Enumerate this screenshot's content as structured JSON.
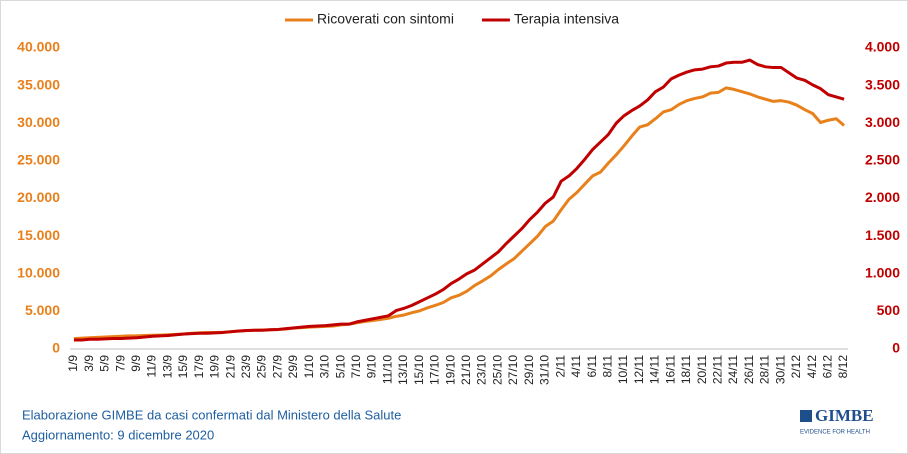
{
  "chart_data": {
    "type": "line",
    "categories": [
      "1/9",
      null,
      "3/9",
      null,
      "5/9",
      null,
      "7/9",
      null,
      "9/9",
      null,
      "11/9",
      null,
      "13/9",
      null,
      "15/9",
      null,
      "17/9",
      null,
      "19/9",
      null,
      "21/9",
      null,
      "23/9",
      null,
      "25/9",
      null,
      "27/9",
      null,
      "29/9",
      null,
      "1/10",
      null,
      "3/10",
      null,
      "5/10",
      null,
      "7/10",
      null,
      "9/10",
      null,
      "11/10",
      null,
      "13/10",
      null,
      "15/10",
      null,
      "17/10",
      null,
      "19/10",
      null,
      "21/10",
      null,
      "23/10",
      null,
      "25/10",
      null,
      "27/10",
      null,
      "29/10",
      null,
      "31/10",
      null,
      "2/11",
      null,
      "4/11",
      null,
      "6/11",
      null,
      "8/11",
      null,
      "10/11",
      null,
      "12/11",
      null,
      "14/11",
      null,
      "16/11",
      null,
      "18/11",
      null,
      "20/11",
      null,
      "22/11",
      null,
      "24/11",
      null,
      "26/11",
      null,
      "28/11",
      null,
      "30/11",
      null,
      "2/12",
      null,
      "4/12",
      null,
      "6/12",
      null,
      "8/12"
    ],
    "series": [
      {
        "name": "Ricoverati con sintomi",
        "color": "#e8801c",
        "axis": "y",
        "values": [
          1380,
          1450,
          1500,
          1550,
          1600,
          1650,
          1700,
          1750,
          1760,
          1800,
          1830,
          1850,
          1890,
          1950,
          2000,
          2100,
          2150,
          2200,
          2200,
          2220,
          2290,
          2380,
          2450,
          2500,
          2530,
          2560,
          2600,
          2660,
          2770,
          2840,
          2900,
          2960,
          3000,
          3050,
          3200,
          3300,
          3490,
          3650,
          3780,
          3920,
          4080,
          4340,
          4520,
          4820,
          5080,
          5470,
          5800,
          6180,
          6800,
          7130,
          7680,
          8450,
          9050,
          9690,
          10550,
          11300,
          12000,
          13000,
          14000,
          15000,
          16300,
          17000,
          18500,
          19900,
          20800,
          21900,
          23000,
          23500,
          24700,
          25800,
          27000,
          28300,
          29500,
          29800,
          30600,
          31500,
          31800,
          32500,
          33000,
          33300,
          33500,
          34000,
          34100,
          34700,
          34500,
          34200,
          33900,
          33500,
          33200,
          32900,
          33000,
          32800,
          32400,
          31800,
          31300,
          30100,
          30400,
          30600,
          29700
        ]
      },
      {
        "name": "Terapia intensiva",
        "color": "#c00000",
        "axis": "y2",
        "values": [
          120,
          120,
          130,
          130,
          135,
          140,
          140,
          145,
          150,
          160,
          170,
          175,
          180,
          190,
          200,
          205,
          210,
          210,
          215,
          220,
          230,
          240,
          245,
          250,
          250,
          255,
          260,
          270,
          280,
          290,
          300,
          305,
          310,
          320,
          330,
          330,
          360,
          380,
          400,
          420,
          440,
          510,
          540,
          580,
          630,
          680,
          730,
          790,
          870,
          930,
          1000,
          1050,
          1130,
          1210,
          1290,
          1400,
          1500,
          1600,
          1720,
          1820,
          1940,
          2020,
          2230,
          2300,
          2400,
          2520,
          2650,
          2750,
          2850,
          3000,
          3100,
          3170,
          3230,
          3310,
          3420,
          3480,
          3590,
          3640,
          3680,
          3710,
          3720,
          3750,
          3760,
          3800,
          3810,
          3810,
          3840,
          3780,
          3750,
          3740,
          3740,
          3670,
          3600,
          3570,
          3510,
          3460,
          3380,
          3350,
          3320
        ]
      }
    ],
    "ylim": [
      0,
      40000
    ],
    "yticks": [
      0,
      {
        "value": 5000,
        "label": "5.000"
      },
      {
        "value": 10000,
        "label": "10.000"
      },
      {
        "value": 15000,
        "label": "15.000"
      },
      {
        "value": 20000,
        "label": "20.000"
      },
      {
        "value": 25000,
        "label": "25.000"
      },
      {
        "value": 30000,
        "label": "30.000"
      },
      {
        "value": 35000,
        "label": "35.000"
      },
      {
        "value": 40000,
        "label": "40.000"
      }
    ],
    "y2lim": [
      0,
      4000
    ],
    "y2ticks": [
      0,
      500,
      {
        "value": 1000,
        "label": "1.000"
      },
      {
        "value": 1500,
        "label": "1.500"
      },
      {
        "value": 2000,
        "label": "2.000"
      },
      {
        "value": 2500,
        "label": "2.500"
      },
      {
        "value": 3000,
        "label": "3.000"
      },
      {
        "value": 3500,
        "label": "3.500"
      },
      {
        "value": 4000,
        "label": "4.000"
      }
    ],
    "legend": "top",
    "source": "Elaborazione GIMBE da casi confermati dal Ministero della Salute",
    "updated": "Aggiornamento: 9 dicembre 2020",
    "logo": "GIMBE",
    "logo_tagline": "EVIDENCE FOR HEALTH"
  }
}
